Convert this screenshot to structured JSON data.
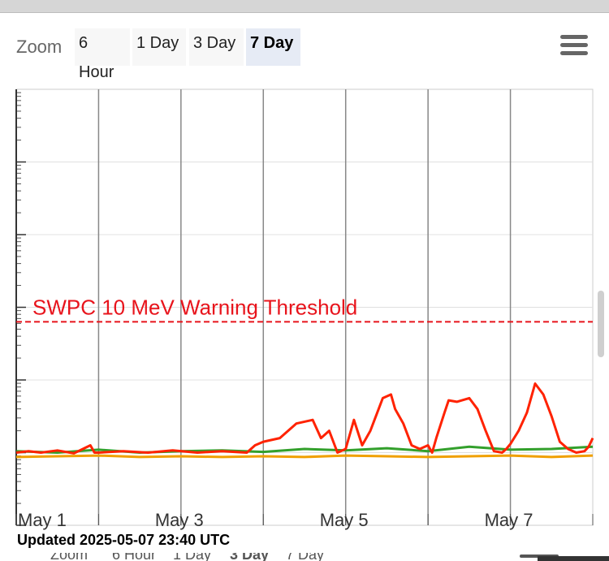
{
  "zoom": {
    "label": "Zoom",
    "buttons": [
      "6 Hour",
      "1 Day",
      "3 Day",
      "7 Day"
    ],
    "selected": "7 Day"
  },
  "menu_icon": "hamburger-menu-icon",
  "updated_text": "Updated 2025-05-07 23:40 UTC",
  "chart_data": {
    "type": "line",
    "x_ticks": [
      "May 1",
      "May 3",
      "May 5",
      "May 7"
    ],
    "x_range_days": [
      0,
      7
    ],
    "y_scale": "log",
    "y_range_decades": 6,
    "grid": true,
    "threshold": {
      "label": "SWPC 10 MeV Warning Threshold",
      "color": "#e8141c",
      "decade_from_bottom": 2.8
    },
    "series": [
      {
        "color": "#ff2200",
        "x": [
          0,
          0.15,
          0.3,
          0.5,
          0.7,
          0.9,
          0.95,
          1.0,
          1.3,
          1.6,
          1.9,
          2.2,
          2.5,
          2.8,
          2.9,
          3.0,
          3.2,
          3.4,
          3.6,
          3.7,
          3.8,
          3.9,
          4.0,
          4.1,
          4.2,
          4.3,
          4.35,
          4.45,
          4.55,
          4.6,
          4.7,
          4.8,
          4.9,
          5.0,
          5.05,
          5.1,
          5.2,
          5.25,
          5.35,
          5.5,
          5.6,
          5.7,
          5.8,
          5.9,
          5.95,
          6.0,
          6.1,
          6.2,
          6.3,
          6.4,
          6.5,
          6.6,
          6.7,
          6.8,
          6.9,
          6.95,
          7.0
        ],
        "y": [
          1.0,
          1.02,
          1.0,
          1.03,
          0.99,
          1.1,
          1.0,
          1.0,
          1.02,
          1.0,
          1.03,
          1.0,
          1.02,
          1.0,
          1.1,
          1.15,
          1.2,
          1.4,
          1.45,
          1.2,
          1.3,
          1.0,
          1.05,
          1.45,
          1.1,
          1.3,
          1.45,
          1.75,
          1.8,
          1.6,
          1.4,
          1.1,
          1.05,
          1.1,
          1.0,
          1.2,
          1.55,
          1.72,
          1.7,
          1.75,
          1.6,
          1.3,
          1.02,
          1.0,
          1.05,
          1.12,
          1.3,
          1.55,
          1.95,
          1.8,
          1.5,
          1.15,
          1.05,
          1.0,
          1.02,
          1.08,
          1.2
        ]
      },
      {
        "color": "#33a02c",
        "x": [
          0,
          0.5,
          1.0,
          1.5,
          2.0,
          2.5,
          3.0,
          3.5,
          4.0,
          4.5,
          5.0,
          5.5,
          6.0,
          6.5,
          7.0
        ],
        "y": [
          1.02,
          1.0,
          1.04,
          1.0,
          1.02,
          1.03,
          1.01,
          1.05,
          1.03,
          1.06,
          1.02,
          1.08,
          1.04,
          1.05,
          1.08
        ]
      },
      {
        "color": "#f0a000",
        "x": [
          0,
          0.5,
          1.0,
          1.5,
          2.0,
          2.5,
          3.0,
          3.5,
          4.0,
          4.5,
          5.0,
          5.5,
          6.0,
          6.5,
          7.0
        ],
        "y": [
          0.94,
          0.95,
          0.96,
          0.94,
          0.95,
          0.94,
          0.95,
          0.94,
          0.96,
          0.95,
          0.94,
          0.95,
          0.96,
          0.94,
          0.96
        ]
      }
    ]
  }
}
